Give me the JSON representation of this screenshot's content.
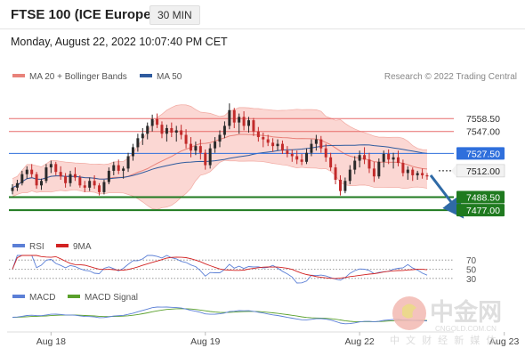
{
  "header": {
    "title": "FTSE 100 (ICE Europe)",
    "timeframe": "30 MIN",
    "timestamp": "Monday, August 22, 2022 10:07:40 PM CET"
  },
  "watermark": {
    "brand_cn": "中金网",
    "sub_cn": "中 文 财 经 新 媒 体",
    "url": "CNGOLD.COM.CN"
  },
  "colors": {
    "bollinger_fill": "#f9c9c4",
    "ma20": "#e8827a",
    "ma50": "#2f5b9e",
    "resistance": "#e76b6b",
    "pivot": "#2f6fdc",
    "support": "#1f7a1f",
    "arrow": "#2f6aa6",
    "rsi": "#5b7fd6",
    "rsi_ma": "#d22222",
    "macd": "#5b7fd6",
    "macd_signal": "#5aa02c",
    "candle_up": "#2a2a2a",
    "candle_down": "#c22a2a"
  },
  "chart_data": [
    {
      "type": "candlestick",
      "title": "FTSE 100 (ICE Europe)",
      "legend": [
        {
          "label": "MA 20 + Bollinger Bands",
          "color": "#e8827a"
        },
        {
          "label": "MA 50",
          "color": "#2f5b9e"
        }
      ],
      "legend_position": "top-left",
      "copyright": "Research © 2022 Trading Central",
      "ylim": [
        7462,
        7588
      ],
      "x_tick_labels": [
        {
          "label": "Aug 18",
          "index": 8
        },
        {
          "label": "Aug 19",
          "index": 40
        },
        {
          "label": "Aug 22",
          "index": 72
        },
        {
          "label": "Aug 23",
          "index": 102
        }
      ],
      "current_price": 7512.0,
      "levels": [
        {
          "value": 7558.5,
          "label": "7558.50",
          "kind": "resistance"
        },
        {
          "value": 7547.0,
          "label": "7547.00",
          "kind": "resistance"
        },
        {
          "value": 7527.5,
          "label": "7527.50",
          "kind": "pivot"
        },
        {
          "value": 7488.5,
          "label": "7488.50",
          "kind": "support"
        },
        {
          "value": 7477.0,
          "label": "7477.00",
          "kind": "support"
        }
      ],
      "forecast_arrow": {
        "from": 7508,
        "to": 7477
      },
      "candles_ohlc": [
        [
          7494,
          7500,
          7491,
          7497
        ],
        [
          7497,
          7504,
          7494,
          7501
        ],
        [
          7501,
          7512,
          7499,
          7509
        ],
        [
          7509,
          7516,
          7505,
          7513
        ],
        [
          7513,
          7518,
          7506,
          7509
        ],
        [
          7509,
          7511,
          7496,
          7499
        ],
        [
          7499,
          7505,
          7495,
          7503
        ],
        [
          7503,
          7518,
          7501,
          7515
        ],
        [
          7515,
          7521,
          7510,
          7518
        ],
        [
          7518,
          7520,
          7508,
          7511
        ],
        [
          7511,
          7516,
          7504,
          7507
        ],
        [
          7507,
          7510,
          7497,
          7501
        ],
        [
          7501,
          7512,
          7498,
          7509
        ],
        [
          7509,
          7515,
          7503,
          7506
        ],
        [
          7506,
          7508,
          7497,
          7499
        ],
        [
          7499,
          7503,
          7493,
          7497
        ],
        [
          7497,
          7506,
          7494,
          7503
        ],
        [
          7503,
          7508,
          7496,
          7499
        ],
        [
          7499,
          7501,
          7490,
          7493
        ],
        [
          7493,
          7504,
          7491,
          7502
        ],
        [
          7502,
          7515,
          7500,
          7512
        ],
        [
          7512,
          7520,
          7508,
          7517
        ],
        [
          7517,
          7522,
          7509,
          7512
        ],
        [
          7512,
          7516,
          7505,
          7514
        ],
        [
          7514,
          7528,
          7511,
          7525
        ],
        [
          7525,
          7536,
          7521,
          7533
        ],
        [
          7533,
          7545,
          7529,
          7541
        ],
        [
          7541,
          7550,
          7535,
          7545
        ],
        [
          7545,
          7555,
          7540,
          7552
        ],
        [
          7552,
          7562,
          7547,
          7558
        ],
        [
          7558,
          7563,
          7550,
          7553
        ],
        [
          7553,
          7556,
          7541,
          7545
        ],
        [
          7545,
          7553,
          7538,
          7550
        ],
        [
          7550,
          7555,
          7542,
          7546
        ],
        [
          7546,
          7552,
          7538,
          7548
        ],
        [
          7548,
          7553,
          7540,
          7544
        ],
        [
          7544,
          7549,
          7532,
          7536
        ],
        [
          7536,
          7542,
          7524,
          7530
        ],
        [
          7530,
          7538,
          7526,
          7534
        ],
        [
          7534,
          7540,
          7522,
          7528
        ],
        [
          7528,
          7531,
          7513,
          7517
        ],
        [
          7517,
          7536,
          7514,
          7532
        ],
        [
          7532,
          7542,
          7528,
          7538
        ],
        [
          7538,
          7548,
          7533,
          7544
        ],
        [
          7544,
          7556,
          7541,
          7552
        ],
        [
          7552,
          7572,
          7549,
          7566
        ],
        [
          7566,
          7568,
          7550,
          7555
        ],
        [
          7555,
          7563,
          7545,
          7560
        ],
        [
          7560,
          7565,
          7548,
          7552
        ],
        [
          7552,
          7560,
          7546,
          7557
        ],
        [
          7557,
          7559,
          7543,
          7547
        ],
        [
          7547,
          7551,
          7538,
          7542
        ],
        [
          7542,
          7546,
          7533,
          7540
        ],
        [
          7540,
          7544,
          7534,
          7537
        ],
        [
          7537,
          7541,
          7529,
          7534
        ],
        [
          7534,
          7540,
          7530,
          7536
        ],
        [
          7536,
          7539,
          7527,
          7530
        ],
        [
          7530,
          7534,
          7524,
          7527
        ],
        [
          7527,
          7531,
          7520,
          7525
        ],
        [
          7525,
          7530,
          7518,
          7522
        ],
        [
          7522,
          7527,
          7517,
          7520
        ],
        [
          7520,
          7532,
          7518,
          7528
        ],
        [
          7528,
          7540,
          7525,
          7536
        ],
        [
          7536,
          7544,
          7530,
          7540
        ],
        [
          7540,
          7543,
          7528,
          7532
        ],
        [
          7532,
          7536,
          7520,
          7524
        ],
        [
          7524,
          7528,
          7512,
          7515
        ],
        [
          7515,
          7518,
          7500,
          7504
        ],
        [
          7504,
          7508,
          7490,
          7494
        ],
        [
          7494,
          7506,
          7492,
          7503
        ],
        [
          7503,
          7517,
          7500,
          7513
        ],
        [
          7513,
          7525,
          7509,
          7521
        ],
        [
          7521,
          7530,
          7515,
          7526
        ],
        [
          7526,
          7533,
          7518,
          7522
        ],
        [
          7522,
          7528,
          7510,
          7514
        ],
        [
          7514,
          7520,
          7502,
          7507
        ],
        [
          7507,
          7523,
          7505,
          7520
        ],
        [
          7520,
          7530,
          7515,
          7527
        ],
        [
          7527,
          7531,
          7518,
          7522
        ],
        [
          7522,
          7528,
          7514,
          7524
        ],
        [
          7524,
          7530,
          7516,
          7519
        ],
        [
          7519,
          7522,
          7507,
          7510
        ],
        [
          7510,
          7516,
          7504,
          7513
        ],
        [
          7513,
          7515,
          7503,
          7508
        ],
        [
          7508,
          7512,
          7504,
          7510
        ],
        [
          7510,
          7514,
          7505,
          7508
        ],
        [
          7508,
          7510,
          7504,
          7507
        ]
      ]
    },
    {
      "type": "line",
      "title": "RSI",
      "series": [
        {
          "name": "RSI"
        },
        {
          "name": "9MA"
        }
      ],
      "ylim": [
        20,
        80
      ],
      "levels": [
        {
          "value": 70,
          "label": "70"
        },
        {
          "value": 50,
          "label": "50"
        },
        {
          "value": 30,
          "label": "30"
        }
      ]
    },
    {
      "type": "line",
      "title": "MACD",
      "series": [
        {
          "name": "MACD"
        },
        {
          "name": "MACD Signal"
        }
      ]
    }
  ]
}
